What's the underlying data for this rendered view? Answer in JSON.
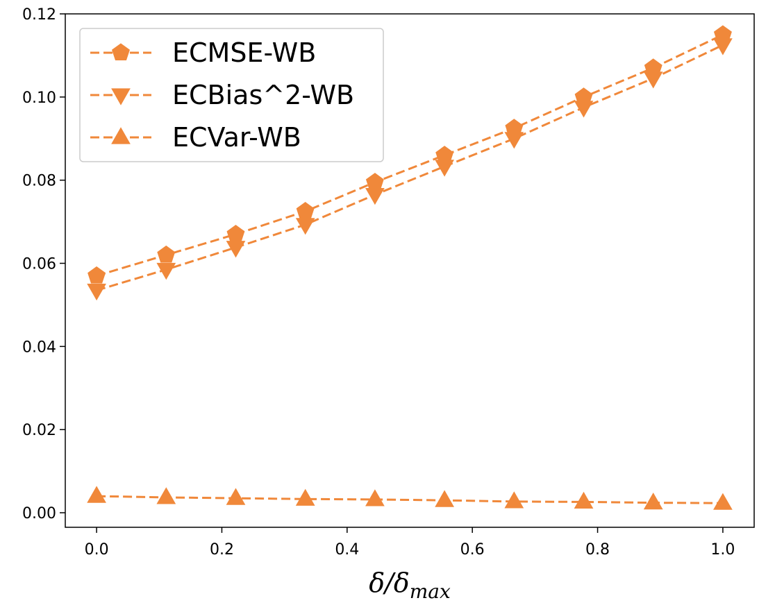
{
  "chart_data": {
    "type": "line",
    "title": "",
    "xlabel": {
      "main": "δ/δ",
      "subscript": "max"
    },
    "ylabel": "",
    "xlim": [
      -0.05,
      1.05
    ],
    "ylim": [
      -0.0035,
      0.12
    ],
    "grid": false,
    "legend_position": "top-left",
    "x": [
      0.0,
      0.1111,
      0.2222,
      0.3333,
      0.4444,
      0.5556,
      0.6667,
      0.7778,
      0.8889,
      1.0
    ],
    "x_ticks": [
      0.0,
      0.2,
      0.4,
      0.6,
      0.8,
      1.0
    ],
    "x_tick_labels": [
      "0.0",
      "0.2",
      "0.4",
      "0.6",
      "0.8",
      "1.0"
    ],
    "y_ticks": [
      0.0,
      0.02,
      0.04,
      0.06,
      0.08,
      0.1,
      0.12
    ],
    "y_tick_labels": [
      "0.00",
      "0.02",
      "0.04",
      "0.06",
      "0.08",
      "0.10",
      "0.12"
    ],
    "color": "#f0883a",
    "series": [
      {
        "name": "ECMSE-WB",
        "marker": "pentagon",
        "values": [
          0.057,
          0.062,
          0.067,
          0.0725,
          0.0795,
          0.086,
          0.0925,
          0.1,
          0.107,
          0.115
        ]
      },
      {
        "name": "ECBias^2-WB",
        "marker": "triangle-down",
        "values": [
          0.0535,
          0.0585,
          0.0638,
          0.0693,
          0.0765,
          0.0833,
          0.09,
          0.0975,
          0.1045,
          0.1125
        ]
      },
      {
        "name": "ECVar-WB",
        "marker": "triangle-up",
        "values": [
          0.004,
          0.0037,
          0.0035,
          0.0033,
          0.0032,
          0.003,
          0.0027,
          0.0026,
          0.0024,
          0.0023
        ]
      }
    ]
  }
}
